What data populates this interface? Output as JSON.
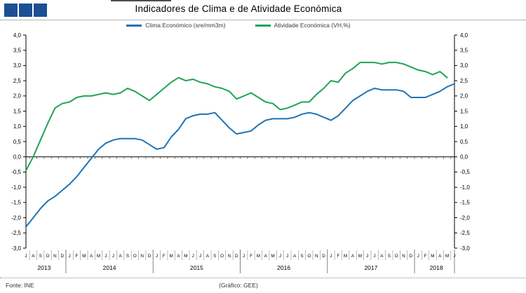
{
  "header": {
    "title": "Indicadores de Clima e de Atividade Económica",
    "logo_colors": [
      "#1c4f94",
      "#1c4f94",
      "#1c4f94"
    ]
  },
  "legend": [
    {
      "label": "Clima Económico (sre/mm3m)",
      "color": "#1f74b6"
    },
    {
      "label": "Atividade Económica (VH,%)",
      "color": "#21a356"
    }
  ],
  "chart_data": {
    "type": "line",
    "title": "Indicadores de Clima e de Atividade Económica",
    "x_start": "Jul 2013",
    "x_end": "Jun 2018",
    "grid": false,
    "legend_position": "top",
    "categories": [
      "J",
      "A",
      "S",
      "O",
      "N",
      "D",
      "J",
      "F",
      "M",
      "A",
      "M",
      "J",
      "J",
      "A",
      "S",
      "O",
      "N",
      "D",
      "J",
      "F",
      "M",
      "A",
      "M",
      "J",
      "J",
      "A",
      "S",
      "O",
      "N",
      "D",
      "J",
      "F",
      "M",
      "A",
      "M",
      "J",
      "J",
      "A",
      "S",
      "O",
      "N",
      "D",
      "J",
      "F",
      "M",
      "A",
      "M",
      "J",
      "J",
      "A",
      "S",
      "O",
      "N",
      "D",
      "J",
      "F",
      "M",
      "A",
      "M",
      "J"
    ],
    "years": [
      {
        "label": "2013",
        "months": 6
      },
      {
        "label": "2014",
        "months": 12
      },
      {
        "label": "2015",
        "months": 12
      },
      {
        "label": "2016",
        "months": 12
      },
      {
        "label": "2017",
        "months": 12
      },
      {
        "label": "2018",
        "months": 6
      }
    ],
    "y_axis": {
      "min": -3.0,
      "max": 4.0,
      "step": 0.5,
      "tick_labels": [
        "4,0",
        "3,5",
        "3,0",
        "2,5",
        "2,0",
        "1,5",
        "1,0",
        "0,5",
        "0,0",
        "-0,5",
        "-1,0",
        "-1,5",
        "-2,0",
        "-2,5",
        "-3,0"
      ],
      "sides": "both"
    },
    "series": [
      {
        "name": "Clima Económico (sre/mm3m)",
        "color": "#1f74b6",
        "values": [
          -2.3,
          -2.0,
          -1.7,
          -1.45,
          -1.3,
          -1.1,
          -0.9,
          -0.65,
          -0.35,
          -0.05,
          0.25,
          0.45,
          0.55,
          0.6,
          0.6,
          0.6,
          0.55,
          0.4,
          0.25,
          0.3,
          0.65,
          0.9,
          1.25,
          1.35,
          1.4,
          1.4,
          1.45,
          1.2,
          0.95,
          0.75,
          0.8,
          0.85,
          1.05,
          1.2,
          1.25,
          1.25,
          1.25,
          1.3,
          1.4,
          1.45,
          1.4,
          1.3,
          1.2,
          1.35,
          1.6,
          1.85,
          2.0,
          2.15,
          2.25,
          2.2,
          2.2,
          2.2,
          2.15,
          1.95,
          1.95,
          1.95,
          2.05,
          2.15,
          2.3,
          2.4
        ]
      },
      {
        "name": "Atividade Económica (VH,%)",
        "color": "#21a356",
        "values": [
          -0.45,
          0.0,
          0.55,
          1.1,
          1.6,
          1.75,
          1.8,
          1.95,
          2.0,
          2.0,
          2.05,
          2.1,
          2.05,
          2.1,
          2.25,
          2.15,
          2.0,
          1.85,
          2.05,
          2.25,
          2.45,
          2.6,
          2.5,
          2.55,
          2.45,
          2.4,
          2.3,
          2.25,
          2.15,
          1.9,
          2.0,
          2.1,
          1.95,
          1.8,
          1.75,
          1.55,
          1.6,
          1.7,
          1.8,
          1.8,
          2.05,
          2.25,
          2.5,
          2.45,
          2.75,
          2.9,
          3.1,
          3.1,
          3.1,
          3.05,
          3.1,
          3.1,
          3.05,
          2.95,
          2.85,
          2.8,
          2.7,
          2.8,
          2.6,
          null
        ]
      }
    ]
  },
  "footer": {
    "source": "Fonte: INE",
    "credit": "(Gráfico: GEE)"
  }
}
